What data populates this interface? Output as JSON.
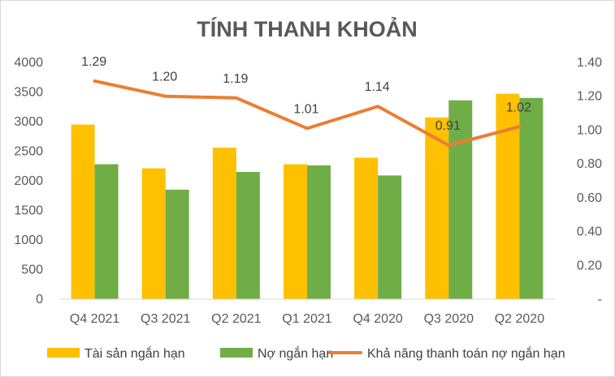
{
  "chart_data": {
    "type": "bar",
    "title": "TÍNH THANH KHOẢN",
    "categories": [
      "Q4 2021",
      "Q3 2021",
      "Q2 2021",
      "Q1 2021",
      "Q4 2020",
      "Q3 2020",
      "Q2 2020"
    ],
    "series": [
      {
        "name": "Tài sản ngắn hạn",
        "type": "bar",
        "axis": "left",
        "color": "#FFC000",
        "values": [
          2950,
          2210,
          2560,
          2280,
          2390,
          3070,
          3470
        ]
      },
      {
        "name": "Nợ ngắn hạn",
        "type": "bar",
        "axis": "left",
        "color": "#70AD47",
        "values": [
          2280,
          1850,
          2150,
          2260,
          2090,
          3360,
          3400
        ]
      },
      {
        "name": "Khả năng thanh toán nợ ngắn hạn",
        "type": "line",
        "axis": "right",
        "color": "#ED7D31",
        "values": [
          1.29,
          1.2,
          1.19,
          1.01,
          1.14,
          0.91,
          1.02
        ],
        "labels": [
          "1.29",
          "1.20",
          "1.19",
          "1.01",
          "1.14",
          "0.91",
          "1.02"
        ]
      }
    ],
    "y_left": {
      "min": 0,
      "max": 4000,
      "step": 500,
      "ticks": [
        "0",
        "500",
        "1000",
        "1500",
        "2000",
        "2500",
        "3000",
        "3500",
        "4000"
      ]
    },
    "y_right": {
      "min": 0,
      "max": 1.4,
      "step": 0.2,
      "ticks": [
        "-",
        "0.20",
        "0.40",
        "0.60",
        "0.80",
        "1.00",
        "1.20",
        "1.40"
      ]
    },
    "grid": false,
    "legend": "bottom"
  }
}
